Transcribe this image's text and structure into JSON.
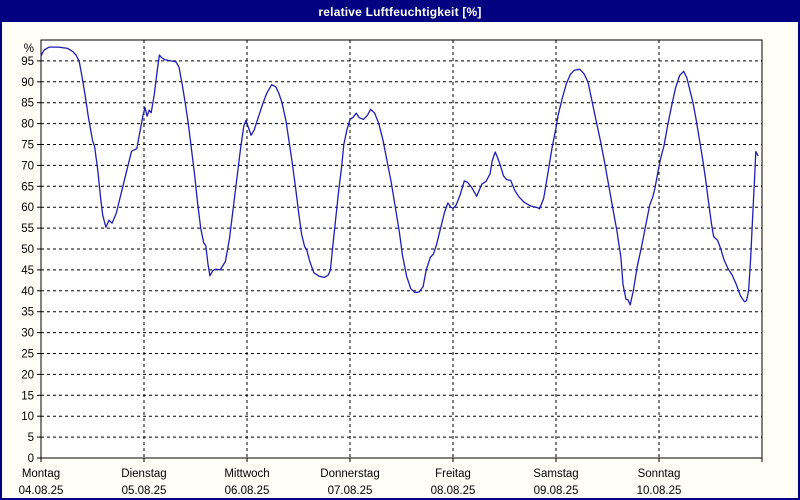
{
  "window": {
    "title": "relative Luftfeuchtigkeit [%]"
  },
  "colors": {
    "titlebar_bg": "#000080",
    "titlebar_text": "#ffffff",
    "window_border": "#000080",
    "plot_border": "#000000",
    "grid": "#000000",
    "line": "#1e1eb4",
    "label_text": "#000000",
    "plot_bg": "#ffffff"
  },
  "chart_data": {
    "type": "line",
    "title": "relative Luftfeuchtigkeit [%]",
    "ylabel_top": "%",
    "unit": "%",
    "ylim": [
      0,
      100
    ],
    "ytick_step": 5,
    "yticks": [
      0,
      5,
      10,
      15,
      20,
      25,
      30,
      35,
      40,
      45,
      50,
      55,
      60,
      65,
      70,
      75,
      80,
      85,
      90,
      95
    ],
    "grid": "dashed horizontal every 5%, dashed vertical at day boundaries",
    "legend_position": "none",
    "days": [
      {
        "name": "Montag",
        "date": "04.08.25"
      },
      {
        "name": "Dienstag",
        "date": "05.08.25"
      },
      {
        "name": "Mittwoch",
        "date": "06.08.25"
      },
      {
        "name": "Donnerstag",
        "date": "07.08.25"
      },
      {
        "name": "Freitag",
        "date": "08.08.25"
      },
      {
        "name": "Samstag",
        "date": "09.08.25"
      },
      {
        "name": "Sonntag",
        "date": "10.08.25"
      }
    ],
    "series": [
      {
        "name": "relative Luftfeuchtigkeit",
        "x_unit": "days since Montag 04.08.25 00:00",
        "points": [
          [
            0.0,
            96.2
          ],
          [
            0.03,
            97.6
          ],
          [
            0.08,
            98.3
          ],
          [
            0.17,
            98.3
          ],
          [
            0.26,
            98.0
          ],
          [
            0.31,
            97.2
          ],
          [
            0.34,
            96.4
          ],
          [
            0.37,
            95.0
          ],
          [
            0.4,
            91.0
          ],
          [
            0.43,
            86.5
          ],
          [
            0.46,
            81.5
          ],
          [
            0.5,
            76.0
          ],
          [
            0.52,
            74.5
          ],
          [
            0.55,
            69.0
          ],
          [
            0.58,
            62.0
          ],
          [
            0.6,
            58.0
          ],
          [
            0.63,
            55.2
          ],
          [
            0.66,
            56.9
          ],
          [
            0.69,
            56.2
          ],
          [
            0.73,
            58.5
          ],
          [
            0.76,
            61.5
          ],
          [
            0.8,
            65.5
          ],
          [
            0.84,
            69.5
          ],
          [
            0.88,
            73.4
          ],
          [
            0.93,
            74.0
          ],
          [
            0.96,
            78.0
          ],
          [
            0.99,
            82.0
          ],
          [
            1.01,
            83.8
          ],
          [
            1.03,
            81.8
          ],
          [
            1.05,
            83.2
          ],
          [
            1.07,
            82.6
          ],
          [
            1.1,
            87.0
          ],
          [
            1.13,
            93.0
          ],
          [
            1.15,
            96.4
          ],
          [
            1.17,
            95.8
          ],
          [
            1.2,
            95.3
          ],
          [
            1.26,
            95.0
          ],
          [
            1.31,
            94.8
          ],
          [
            1.34,
            93.5
          ],
          [
            1.37,
            89.5
          ],
          [
            1.4,
            85.0
          ],
          [
            1.43,
            80.0
          ],
          [
            1.46,
            74.0
          ],
          [
            1.49,
            68.0
          ],
          [
            1.52,
            61.0
          ],
          [
            1.55,
            55.0
          ],
          [
            1.58,
            51.5
          ],
          [
            1.6,
            50.8
          ],
          [
            1.62,
            46.5
          ],
          [
            1.64,
            43.6
          ],
          [
            1.67,
            44.9
          ],
          [
            1.7,
            45.2
          ],
          [
            1.74,
            45.0
          ],
          [
            1.79,
            47.0
          ],
          [
            1.83,
            52.5
          ],
          [
            1.87,
            60.5
          ],
          [
            1.91,
            68.5
          ],
          [
            1.94,
            74.5
          ],
          [
            1.97,
            79.5
          ],
          [
            1.99,
            80.8
          ],
          [
            2.02,
            78.6
          ],
          [
            2.04,
            77.2
          ],
          [
            2.07,
            78.5
          ],
          [
            2.11,
            81.5
          ],
          [
            2.15,
            84.5
          ],
          [
            2.19,
            87.2
          ],
          [
            2.24,
            89.3
          ],
          [
            2.28,
            88.8
          ],
          [
            2.31,
            87.2
          ],
          [
            2.34,
            85.0
          ],
          [
            2.38,
            80.5
          ],
          [
            2.41,
            75.5
          ],
          [
            2.44,
            70.5
          ],
          [
            2.47,
            65.0
          ],
          [
            2.5,
            59.0
          ],
          [
            2.53,
            53.5
          ],
          [
            2.56,
            50.5
          ],
          [
            2.58,
            49.8
          ],
          [
            2.61,
            47.0
          ],
          [
            2.65,
            44.3
          ],
          [
            2.7,
            43.5
          ],
          [
            2.75,
            43.2
          ],
          [
            2.79,
            43.8
          ],
          [
            2.81,
            45.0
          ],
          [
            2.83,
            50.0
          ],
          [
            2.86,
            57.0
          ],
          [
            2.89,
            64.0
          ],
          [
            2.92,
            70.0
          ],
          [
            2.94,
            75.0
          ],
          [
            2.97,
            78.5
          ],
          [
            3.0,
            81.0
          ],
          [
            3.03,
            81.5
          ],
          [
            3.06,
            82.5
          ],
          [
            3.09,
            81.4
          ],
          [
            3.13,
            81.0
          ],
          [
            3.17,
            82.0
          ],
          [
            3.2,
            83.4
          ],
          [
            3.24,
            82.5
          ],
          [
            3.28,
            80.0
          ],
          [
            3.32,
            76.0
          ],
          [
            3.36,
            71.0
          ],
          [
            3.4,
            66.0
          ],
          [
            3.44,
            60.0
          ],
          [
            3.48,
            54.0
          ],
          [
            3.51,
            48.5
          ],
          [
            3.55,
            43.5
          ],
          [
            3.59,
            40.5
          ],
          [
            3.63,
            39.6
          ],
          [
            3.67,
            39.7
          ],
          [
            3.71,
            41.0
          ],
          [
            3.74,
            45.0
          ],
          [
            3.78,
            48.0
          ],
          [
            3.81,
            48.8
          ],
          [
            3.84,
            51.0
          ],
          [
            3.88,
            55.0
          ],
          [
            3.92,
            59.0
          ],
          [
            3.95,
            61.0
          ],
          [
            3.98,
            60.0
          ],
          [
            4.0,
            59.7
          ],
          [
            4.03,
            60.5
          ],
          [
            4.07,
            63.0
          ],
          [
            4.11,
            66.3
          ],
          [
            4.14,
            66.0
          ],
          [
            4.18,
            64.8
          ],
          [
            4.23,
            62.6
          ],
          [
            4.28,
            65.5
          ],
          [
            4.32,
            66.2
          ],
          [
            4.36,
            68.0
          ],
          [
            4.38,
            71.0
          ],
          [
            4.41,
            73.2
          ],
          [
            4.43,
            72.0
          ],
          [
            4.46,
            70.0
          ],
          [
            4.49,
            67.5
          ],
          [
            4.52,
            66.6
          ],
          [
            4.56,
            66.4
          ],
          [
            4.6,
            64.0
          ],
          [
            4.64,
            62.5
          ],
          [
            4.69,
            61.2
          ],
          [
            4.75,
            60.3
          ],
          [
            4.82,
            59.9
          ],
          [
            4.84,
            59.6
          ],
          [
            4.88,
            62.0
          ],
          [
            4.92,
            68.0
          ],
          [
            4.96,
            74.0
          ],
          [
            5.0,
            79.0
          ],
          [
            5.02,
            82.0
          ],
          [
            5.06,
            86.0
          ],
          [
            5.1,
            89.5
          ],
          [
            5.14,
            91.8
          ],
          [
            5.18,
            92.8
          ],
          [
            5.23,
            93.0
          ],
          [
            5.27,
            92.0
          ],
          [
            5.31,
            90.0
          ],
          [
            5.34,
            86.5
          ],
          [
            5.37,
            83.0
          ],
          [
            5.4,
            79.5
          ],
          [
            5.43,
            76.0
          ],
          [
            5.47,
            71.0
          ],
          [
            5.51,
            65.5
          ],
          [
            5.55,
            60.0
          ],
          [
            5.59,
            54.5
          ],
          [
            5.63,
            48.0
          ],
          [
            5.65,
            41.5
          ],
          [
            5.68,
            38.0
          ],
          [
            5.7,
            37.8
          ],
          [
            5.72,
            36.6
          ],
          [
            5.75,
            40.0
          ],
          [
            5.79,
            46.0
          ],
          [
            5.83,
            50.5
          ],
          [
            5.87,
            55.5
          ],
          [
            5.91,
            60.5
          ],
          [
            5.94,
            62.5
          ],
          [
            5.96,
            64.5
          ],
          [
            5.99,
            68.5
          ],
          [
            6.01,
            71.0
          ],
          [
            6.03,
            73.0
          ],
          [
            6.05,
            74.8
          ],
          [
            6.08,
            79.0
          ],
          [
            6.12,
            84.0
          ],
          [
            6.16,
            88.5
          ],
          [
            6.2,
            91.5
          ],
          [
            6.24,
            92.5
          ],
          [
            6.27,
            91.0
          ],
          [
            6.3,
            88.0
          ],
          [
            6.33,
            85.0
          ],
          [
            6.36,
            81.0
          ],
          [
            6.39,
            76.5
          ],
          [
            6.42,
            72.0
          ],
          [
            6.45,
            67.0
          ],
          [
            6.48,
            61.5
          ],
          [
            6.51,
            56.0
          ],
          [
            6.53,
            53.0
          ],
          [
            6.57,
            52.0
          ],
          [
            6.6,
            50.0
          ],
          [
            6.63,
            47.5
          ],
          [
            6.67,
            45.3
          ],
          [
            6.71,
            43.8
          ],
          [
            6.75,
            41.5
          ],
          [
            6.79,
            38.8
          ],
          [
            6.83,
            37.4
          ],
          [
            6.85,
            37.6
          ],
          [
            6.87,
            40.0
          ],
          [
            6.89,
            48.0
          ],
          [
            6.91,
            58.0
          ],
          [
            6.93,
            68.0
          ],
          [
            6.94,
            73.3
          ],
          [
            6.96,
            72.4
          ]
        ]
      }
    ]
  }
}
